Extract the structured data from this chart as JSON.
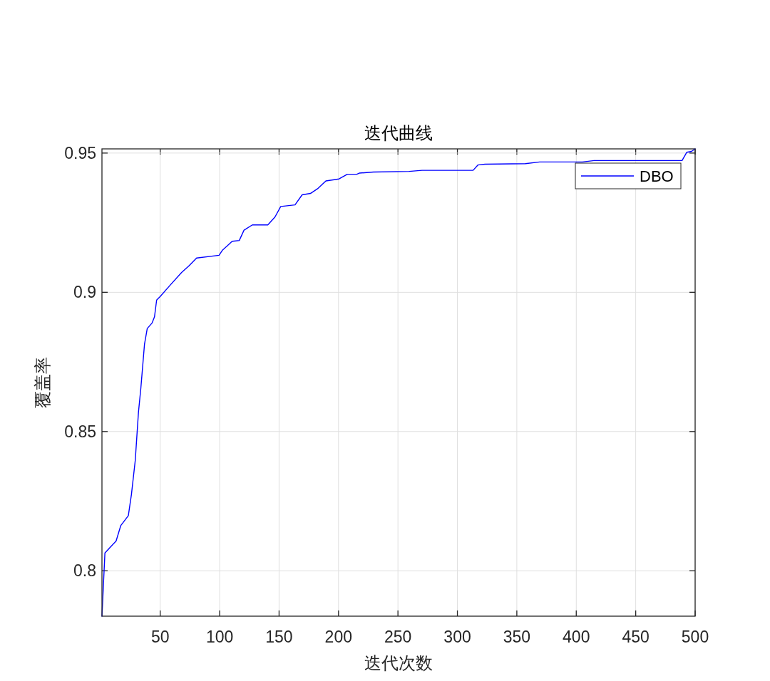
{
  "chart_data": {
    "type": "line",
    "title": "迭代曲线",
    "xlabel": "迭代次数",
    "ylabel": "覆盖率",
    "xlim": [
      1,
      500
    ],
    "ylim": [
      0.7837,
      0.9515
    ],
    "xticks": [
      50,
      100,
      150,
      200,
      250,
      300,
      350,
      400,
      450,
      500
    ],
    "yticks": [
      0.8,
      0.85,
      0.9,
      0.95
    ],
    "grid": true,
    "legend": "top right",
    "marker": "none",
    "line_style": "solid",
    "series": [
      {
        "name": "DBO",
        "color": "#0000ff",
        "x": [
          1,
          3.5,
          12.9,
          16.8,
          23.2,
          25.8,
          29,
          31.7,
          33.7,
          36.8,
          39.1,
          43.2,
          45.2,
          47,
          50,
          57.8,
          68,
          74,
          80.6,
          99.5,
          102.5,
          106.5,
          110.5,
          116.5,
          120.5,
          127.5,
          140.5,
          146.5,
          151.4,
          163.4,
          169.4,
          176.4,
          182.4,
          189.4,
          200.4,
          207.4,
          215.4,
          217.4,
          229.4,
          259.3,
          270.3,
          313.2,
          317.2,
          323.2,
          357.2,
          369.2,
          405.1,
          415.1,
          489,
          493,
          497,
          500
        ],
        "values": [
          0.7837,
          0.8064,
          0.8107,
          0.8162,
          0.8198,
          0.8274,
          0.8396,
          0.8569,
          0.8655,
          0.8814,
          0.887,
          0.889,
          0.8912,
          0.8972,
          0.8985,
          0.9023,
          0.9071,
          0.9094,
          0.9123,
          0.9133,
          0.9152,
          0.9167,
          0.9183,
          0.9186,
          0.9223,
          0.9242,
          0.9242,
          0.927,
          0.9308,
          0.9314,
          0.935,
          0.9355,
          0.9372,
          0.94,
          0.9407,
          0.9424,
          0.9424,
          0.9428,
          0.9432,
          0.9434,
          0.9438,
          0.9438,
          0.9457,
          0.946,
          0.9462,
          0.9468,
          0.9468,
          0.9473,
          0.9473,
          0.9503,
          0.9506,
          0.9515
        ]
      }
    ]
  }
}
